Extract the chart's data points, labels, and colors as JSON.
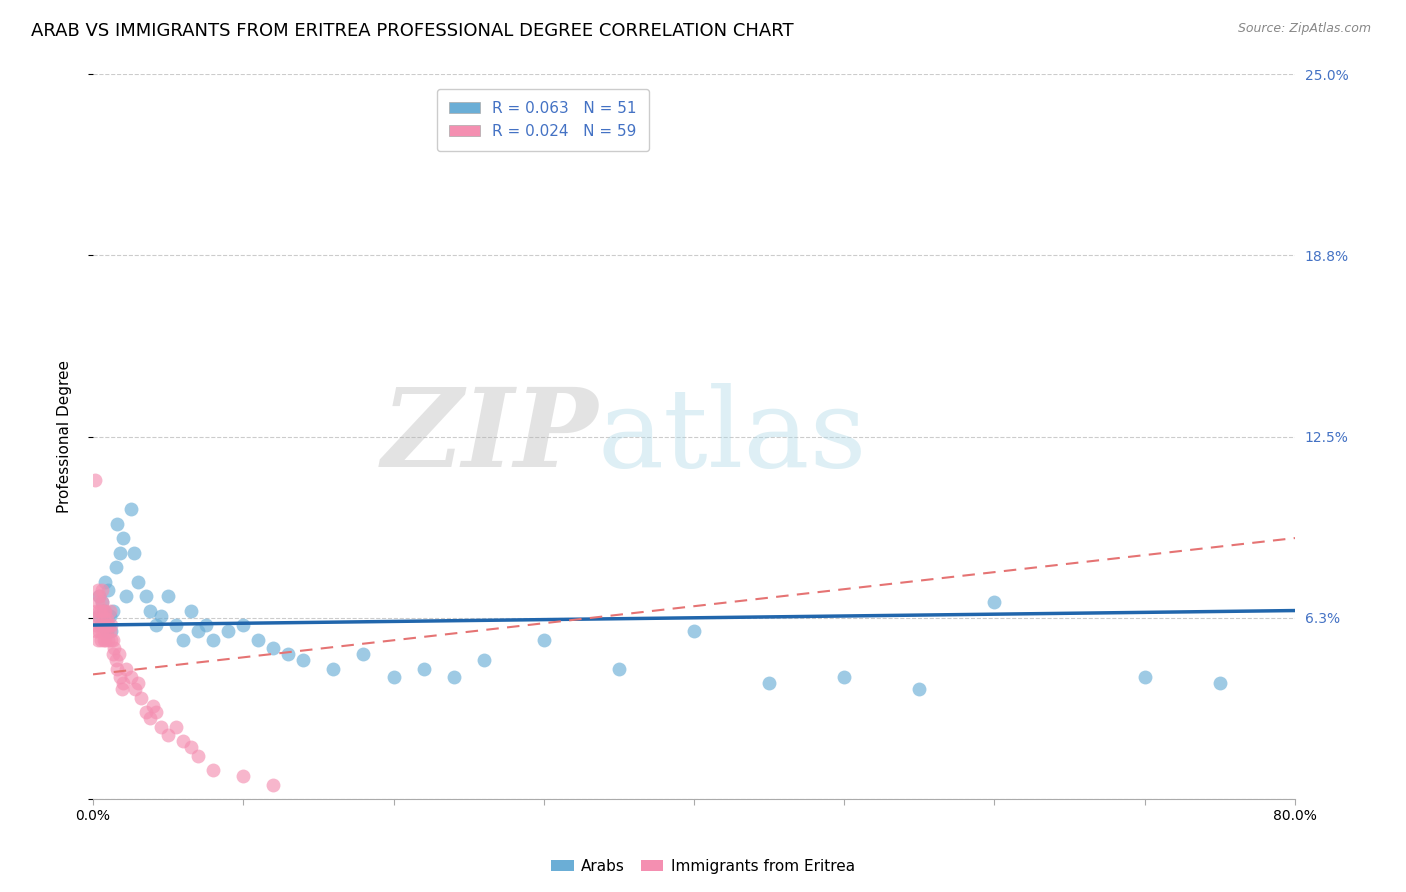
{
  "title": "ARAB VS IMMIGRANTS FROM ERITREA PROFESSIONAL DEGREE CORRELATION CHART",
  "source": "Source: ZipAtlas.com",
  "ylabel": "Professional Degree",
  "xlim": [
    0,
    0.8
  ],
  "ylim": [
    0,
    0.25
  ],
  "yticks": [
    0.0,
    0.0625,
    0.125,
    0.1875,
    0.25
  ],
  "ytick_labels": [
    "",
    "6.3%",
    "12.5%",
    "18.8%",
    "25.0%"
  ],
  "legend_arab_r": "R = 0.063",
  "legend_arab_n": "N = 51",
  "legend_eritrea_r": "R = 0.024",
  "legend_eritrea_n": "N = 59",
  "arab_color": "#6baed6",
  "eritrea_color": "#f48fb1",
  "arab_line_color": "#2166ac",
  "eritrea_line_color": "#e57373",
  "background_color": "#ffffff",
  "grid_color": "#cccccc",
  "title_fontsize": 13,
  "label_fontsize": 11,
  "tick_fontsize": 10,
  "arab_x": [
    0.003,
    0.004,
    0.005,
    0.006,
    0.007,
    0.008,
    0.009,
    0.01,
    0.011,
    0.012,
    0.013,
    0.015,
    0.016,
    0.018,
    0.02,
    0.022,
    0.025,
    0.027,
    0.03,
    0.035,
    0.038,
    0.042,
    0.045,
    0.05,
    0.055,
    0.06,
    0.065,
    0.07,
    0.075,
    0.08,
    0.09,
    0.1,
    0.11,
    0.12,
    0.13,
    0.14,
    0.16,
    0.18,
    0.2,
    0.22,
    0.24,
    0.26,
    0.3,
    0.35,
    0.4,
    0.45,
    0.5,
    0.55,
    0.6,
    0.7,
    0.75
  ],
  "arab_y": [
    0.063,
    0.07,
    0.06,
    0.068,
    0.065,
    0.075,
    0.058,
    0.072,
    0.063,
    0.058,
    0.065,
    0.08,
    0.095,
    0.085,
    0.09,
    0.07,
    0.1,
    0.085,
    0.075,
    0.07,
    0.065,
    0.06,
    0.063,
    0.07,
    0.06,
    0.055,
    0.065,
    0.058,
    0.06,
    0.055,
    0.058,
    0.06,
    0.055,
    0.052,
    0.05,
    0.048,
    0.045,
    0.05,
    0.042,
    0.045,
    0.042,
    0.048,
    0.055,
    0.045,
    0.058,
    0.04,
    0.042,
    0.038,
    0.068,
    0.042,
    0.04
  ],
  "eritrea_x": [
    0.001,
    0.001,
    0.002,
    0.002,
    0.002,
    0.003,
    0.003,
    0.003,
    0.004,
    0.004,
    0.004,
    0.005,
    0.005,
    0.005,
    0.006,
    0.006,
    0.006,
    0.007,
    0.007,
    0.007,
    0.007,
    0.008,
    0.008,
    0.008,
    0.009,
    0.009,
    0.01,
    0.01,
    0.011,
    0.011,
    0.012,
    0.012,
    0.013,
    0.013,
    0.014,
    0.015,
    0.016,
    0.017,
    0.018,
    0.019,
    0.02,
    0.022,
    0.025,
    0.028,
    0.03,
    0.032,
    0.035,
    0.038,
    0.04,
    0.042,
    0.045,
    0.05,
    0.055,
    0.06,
    0.065,
    0.07,
    0.08,
    0.1,
    0.12
  ],
  "eritrea_y": [
    0.11,
    0.062,
    0.058,
    0.065,
    0.06,
    0.055,
    0.068,
    0.072,
    0.058,
    0.065,
    0.07,
    0.06,
    0.055,
    0.065,
    0.058,
    0.072,
    0.068,
    0.055,
    0.065,
    0.058,
    0.062,
    0.06,
    0.055,
    0.065,
    0.058,
    0.062,
    0.06,
    0.055,
    0.058,
    0.065,
    0.055,
    0.06,
    0.05,
    0.055,
    0.052,
    0.048,
    0.045,
    0.05,
    0.042,
    0.038,
    0.04,
    0.045,
    0.042,
    0.038,
    0.04,
    0.035,
    0.03,
    0.028,
    0.032,
    0.03,
    0.025,
    0.022,
    0.025,
    0.02,
    0.018,
    0.015,
    0.01,
    0.008,
    0.005
  ],
  "arab_trendline_start_y": 0.06,
  "arab_trendline_end_y": 0.065,
  "eritrea_trendline_start_y": 0.043,
  "eritrea_trendline_end_y": 0.09
}
